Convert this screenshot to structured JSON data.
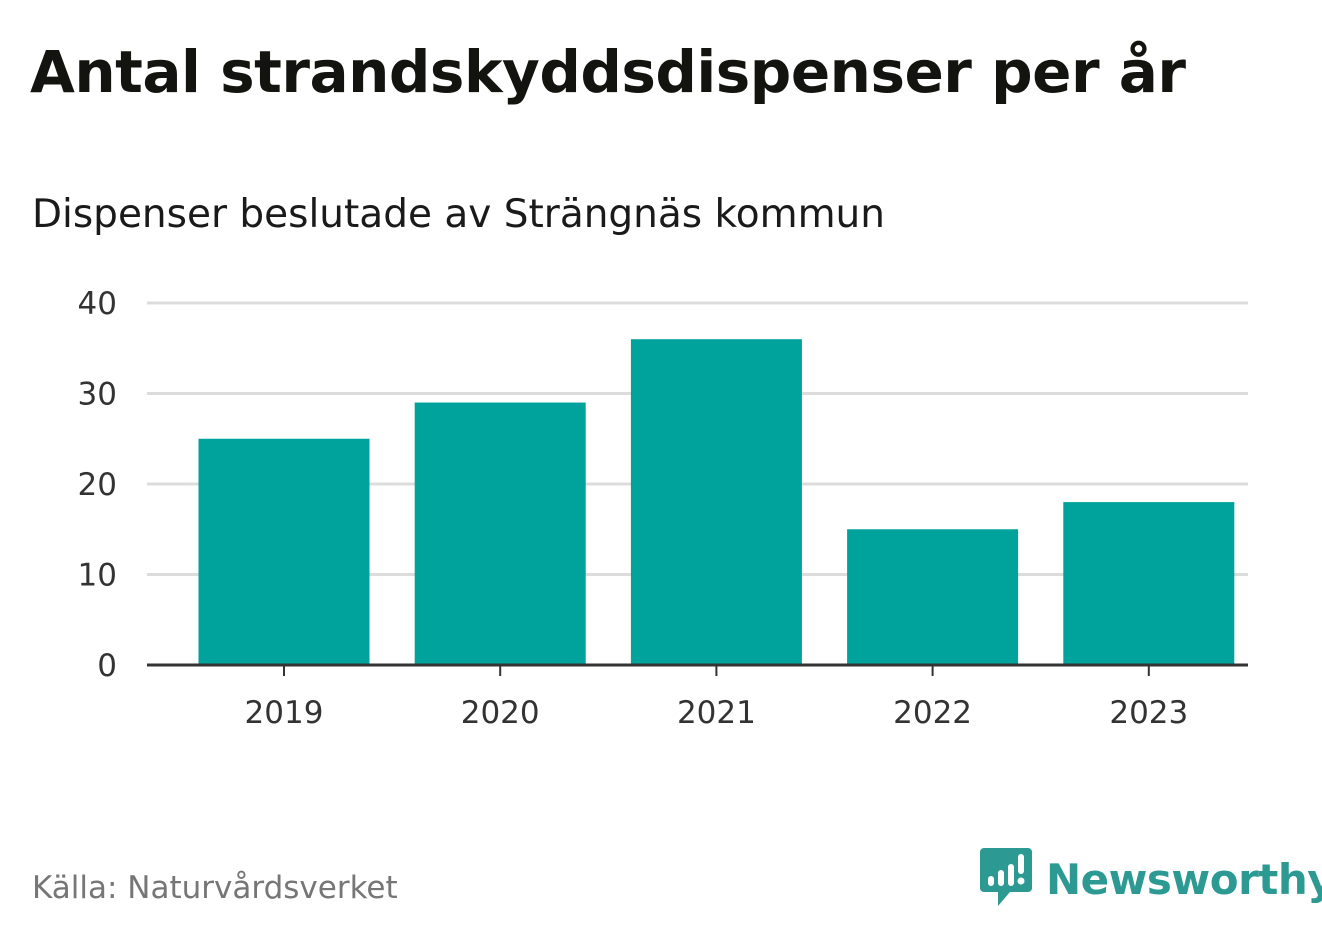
{
  "colors": {
    "bar": "#00a39b",
    "grid": "#dcdcdc",
    "axis": "#333333",
    "brand": "#2c9a92"
  },
  "chart_data": {
    "type": "bar",
    "title": "Antal strandskyddsdispenser per år",
    "subtitle": "Dispenser beslutade av Strängnäs kommun",
    "categories": [
      "2019",
      "2020",
      "2021",
      "2022",
      "2023"
    ],
    "values": [
      25,
      29,
      36,
      15,
      18
    ],
    "yticks": [
      0,
      10,
      20,
      30,
      40
    ],
    "ylim": [
      0,
      40
    ],
    "xlabel": "",
    "ylabel": "",
    "grid": true,
    "legend": "none"
  },
  "footer": {
    "source": "Källa: Naturvårdsverket",
    "brand_name": "Newsworthy",
    "brand_icon": "newsworthy-logo-icon"
  }
}
